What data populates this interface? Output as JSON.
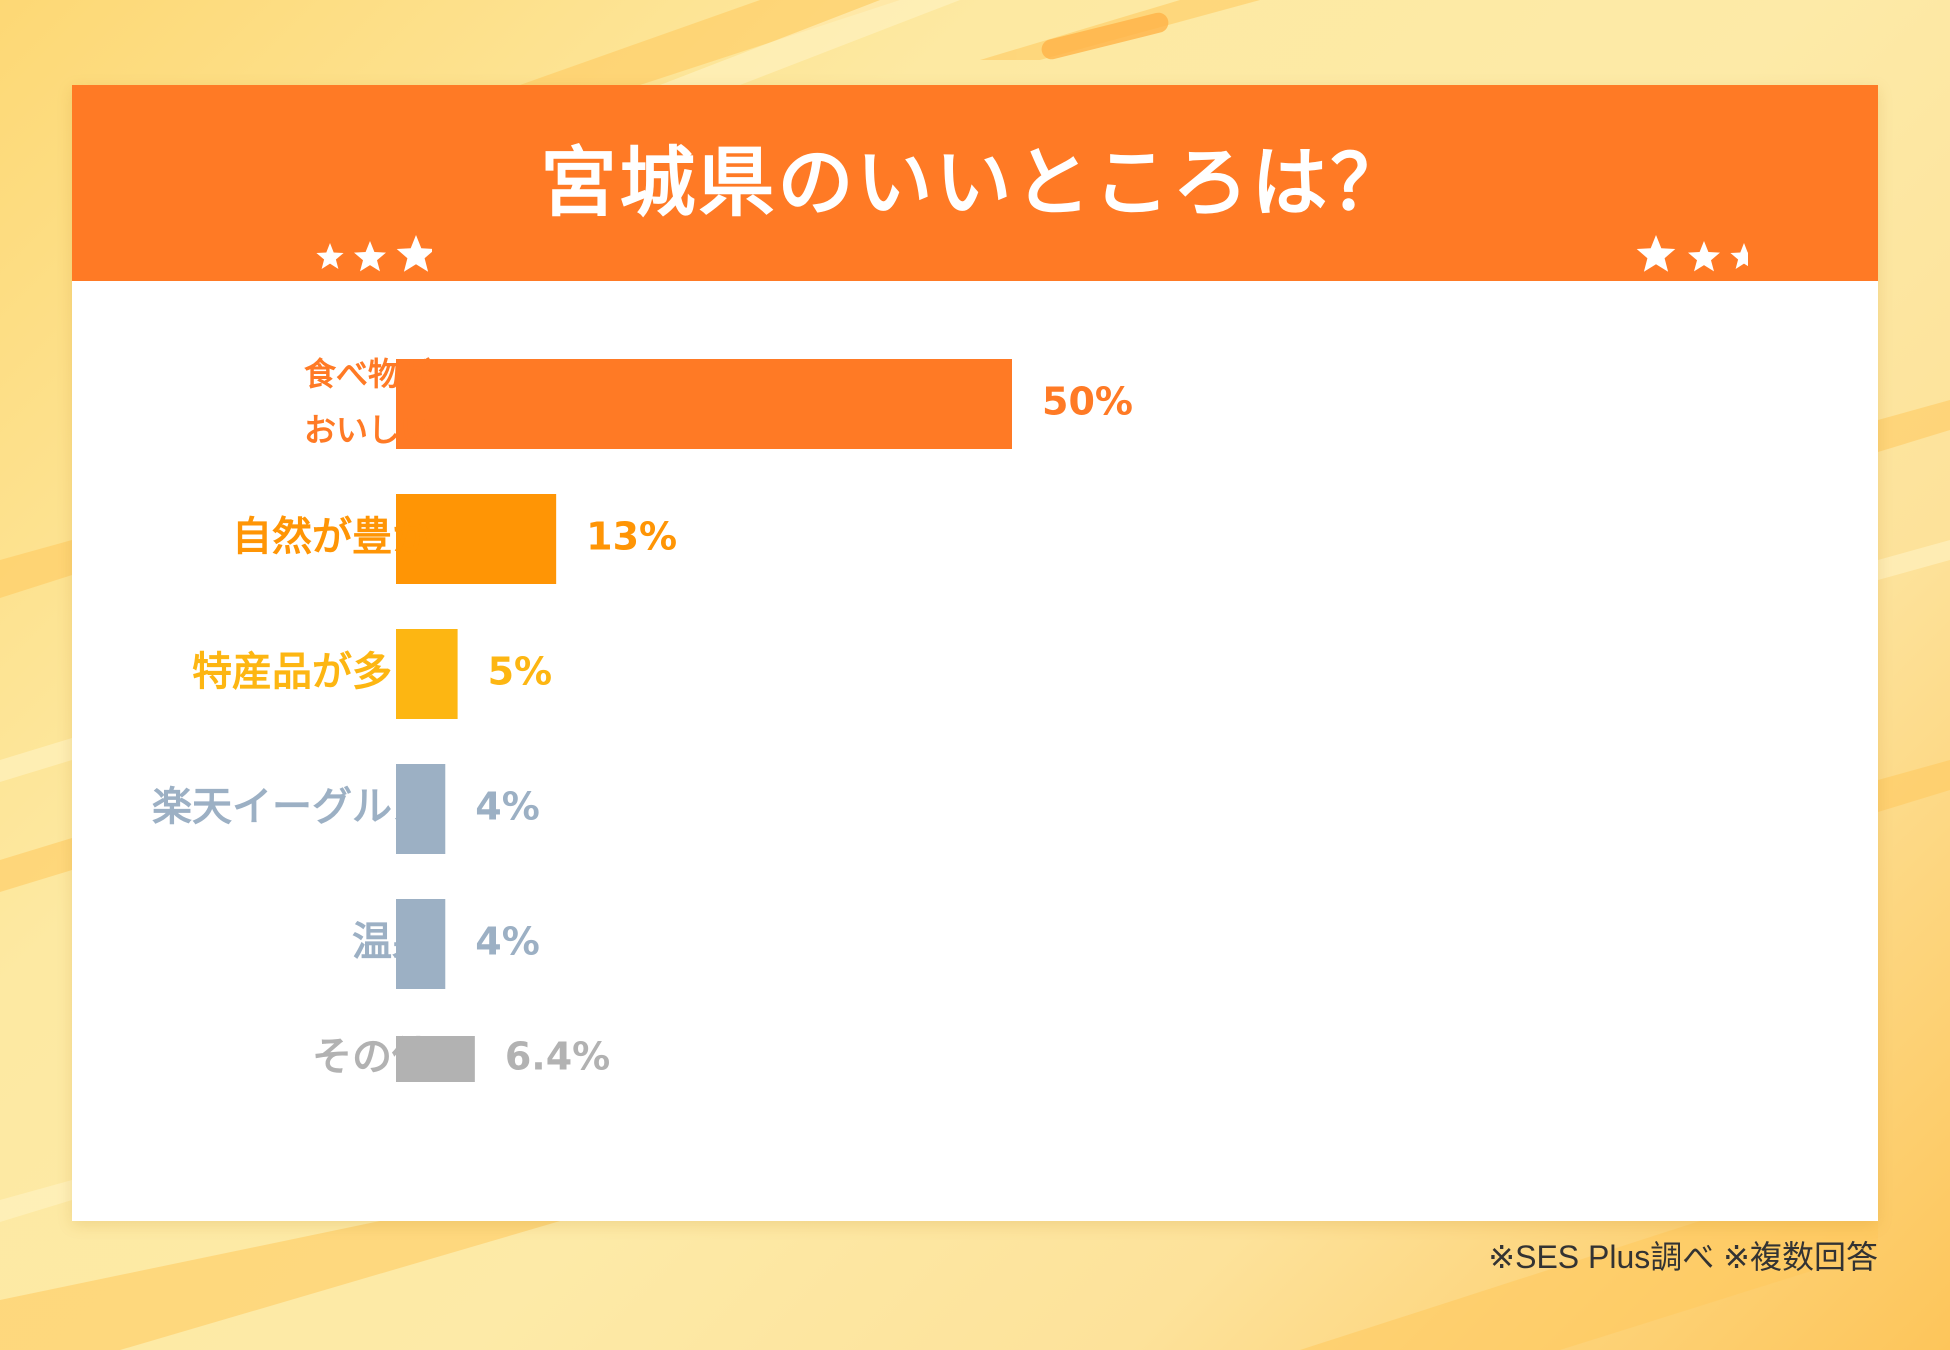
{
  "title": "宮城県のいいところは？",
  "footnote": "※SES Plus調べ ※複数回答",
  "colors": {
    "header": "#ff7a25",
    "orange": "#ff7a25",
    "amber": "#ff9505",
    "yellow": "#fdb612",
    "slate": "#9cb0c4",
    "gray": "#b2b2b2"
  },
  "chart_data": {
    "type": "bar",
    "orientation": "horizontal",
    "title": "宮城県のいいところは？",
    "categories": [
      [
        "食べ物が",
        "おいしい"
      ],
      [
        "自然が豊か"
      ],
      [
        "特産品が多い"
      ],
      [
        "楽天イーグルス"
      ],
      [
        "温泉"
      ],
      [
        "その他"
      ]
    ],
    "values": [
      50,
      13,
      5,
      4,
      4,
      6.4
    ],
    "value_labels": [
      "50%",
      "13%",
      "5%",
      "4%",
      "4%",
      "6.4%"
    ],
    "bar_colors": [
      "#ff7a25",
      "#ff9505",
      "#fdb612",
      "#9cb0c4",
      "#9cb0c4",
      "#b2b2b2"
    ],
    "xlim": [
      0,
      100
    ],
    "grid": false,
    "legend": "none"
  }
}
